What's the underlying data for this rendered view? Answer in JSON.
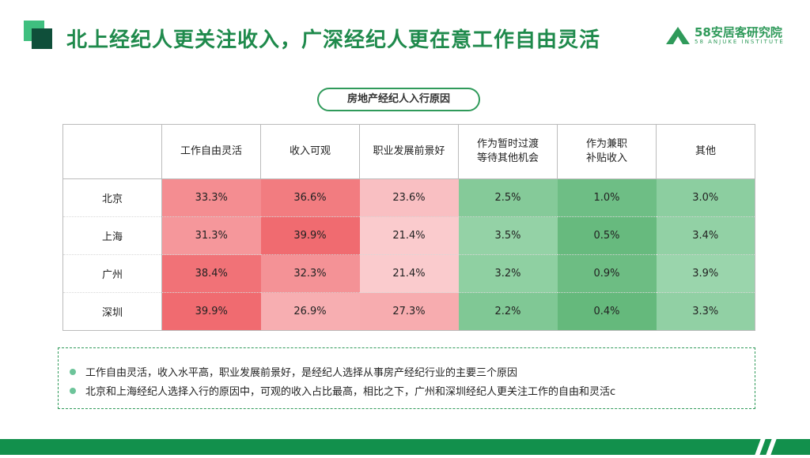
{
  "header": {
    "title": "北上经纪人更关注收入，广深经纪人更在意工作自由灵活",
    "logo_name": "58安居客研究院",
    "logo_sub": "58 ANJUKE INSTITUTE"
  },
  "table_title": "房地产经纪人入行原因",
  "columns": [
    "工作自由灵活",
    "收入可观",
    "职业发展前景好",
    "作为暂时过渡\n等待其他机会",
    "作为兼职\n补贴收入",
    "其他"
  ],
  "rows": [
    {
      "city": "北京",
      "values": [
        "33.3%",
        "36.6%",
        "23.6%",
        "2.5%",
        "1.0%",
        "3.0%"
      ]
    },
    {
      "city": "上海",
      "values": [
        "31.3%",
        "39.9%",
        "21.4%",
        "3.5%",
        "0.5%",
        "3.4%"
      ]
    },
    {
      "city": "广州",
      "values": [
        "38.4%",
        "32.3%",
        "21.4%",
        "3.2%",
        "0.9%",
        "3.9%"
      ]
    },
    {
      "city": "深圳",
      "values": [
        "39.9%",
        "26.9%",
        "27.3%",
        "2.2%",
        "0.4%",
        "3.3%"
      ]
    }
  ],
  "notes": [
    "工作自由灵活，收入水平高，职业发展前景好，是经纪人选择从事房产经纪行业的主要三个原因",
    "北京和上海经纪人选择入行的原因中，可观的收入占比最高，相比之下，广州和深圳经纪人更关注工作的自由和灵活c"
  ],
  "colors": {
    "brand_green": "#1f8a4c",
    "high_red": "#f06a6f",
    "low_pink": "#fbd2d4",
    "high_green": "#5fb677",
    "low_green": "#9bd6ad"
  }
}
